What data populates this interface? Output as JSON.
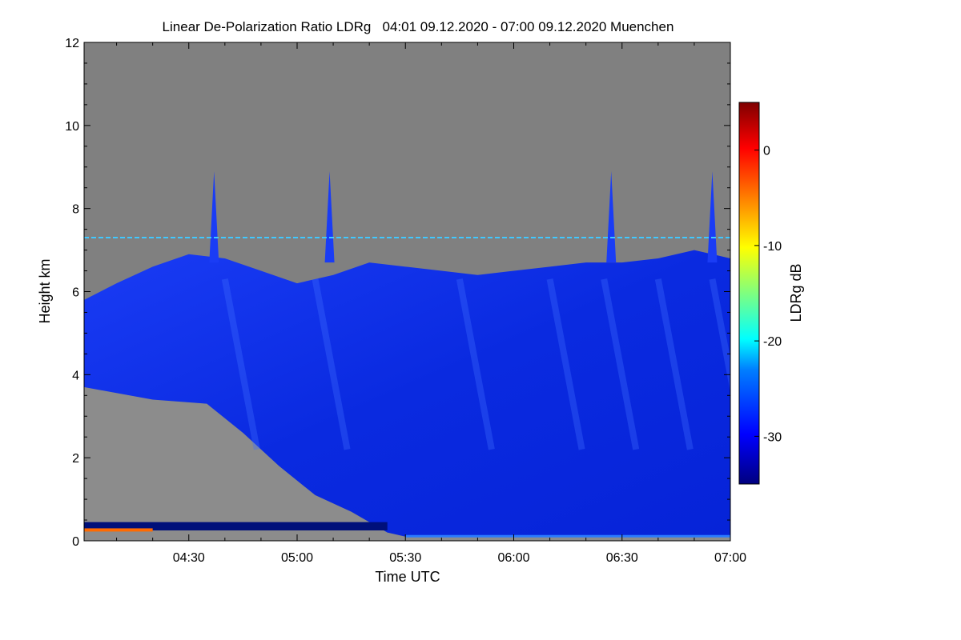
{
  "chart_data": {
    "type": "heatmap",
    "title": "Linear De-Polarization Ratio LDRg   04:01 09.12.2020 - 07:00 09.12.2020 Muenchen",
    "xlabel": "Time UTC",
    "ylabel": "Height km",
    "colorbar_label": "LDRg dB",
    "xlim": [
      "04:01",
      "07:00"
    ],
    "ylim": [
      0,
      12
    ],
    "x_ticks": [
      "04:30",
      "05:00",
      "05:30",
      "06:00",
      "06:30",
      "07:00"
    ],
    "y_ticks": [
      "0",
      "2",
      "4",
      "6",
      "8",
      "10",
      "12"
    ],
    "colorbar_range": [
      -35,
      5
    ],
    "colorbar_ticks": [
      "0",
      "-10",
      "-20",
      "-30"
    ],
    "background_color": "#808080",
    "cloud_top_km": [
      {
        "time": "04:01",
        "top": 5.8
      },
      {
        "time": "04:10",
        "top": 6.2
      },
      {
        "time": "04:20",
        "top": 6.6
      },
      {
        "time": "04:30",
        "top": 6.9
      },
      {
        "time": "04:40",
        "top": 6.8
      },
      {
        "time": "04:50",
        "top": 6.5
      },
      {
        "time": "05:00",
        "top": 6.2
      },
      {
        "time": "05:10",
        "top": 6.4
      },
      {
        "time": "05:20",
        "top": 6.7
      },
      {
        "time": "05:30",
        "top": 6.6
      },
      {
        "time": "05:40",
        "top": 6.5
      },
      {
        "time": "05:50",
        "top": 6.4
      },
      {
        "time": "06:00",
        "top": 6.5
      },
      {
        "time": "06:10",
        "top": 6.6
      },
      {
        "time": "06:20",
        "top": 6.7
      },
      {
        "time": "06:30",
        "top": 6.7
      },
      {
        "time": "06:40",
        "top": 6.8
      },
      {
        "time": "06:50",
        "top": 7.0
      },
      {
        "time": "07:00",
        "top": 6.8
      }
    ],
    "cloud_base_km": [
      {
        "time": "04:01",
        "base": 3.7
      },
      {
        "time": "04:20",
        "base": 3.4
      },
      {
        "time": "04:35",
        "base": 3.3
      },
      {
        "time": "04:45",
        "base": 2.6
      },
      {
        "time": "04:55",
        "base": 1.8
      },
      {
        "time": "05:05",
        "base": 1.1
      },
      {
        "time": "05:15",
        "base": 0.7
      },
      {
        "time": "05:25",
        "base": 0.2
      },
      {
        "time": "05:30",
        "base": 0.1
      },
      {
        "time": "07:00",
        "base": 0.1
      }
    ],
    "feature_line_km": 7.3
  }
}
